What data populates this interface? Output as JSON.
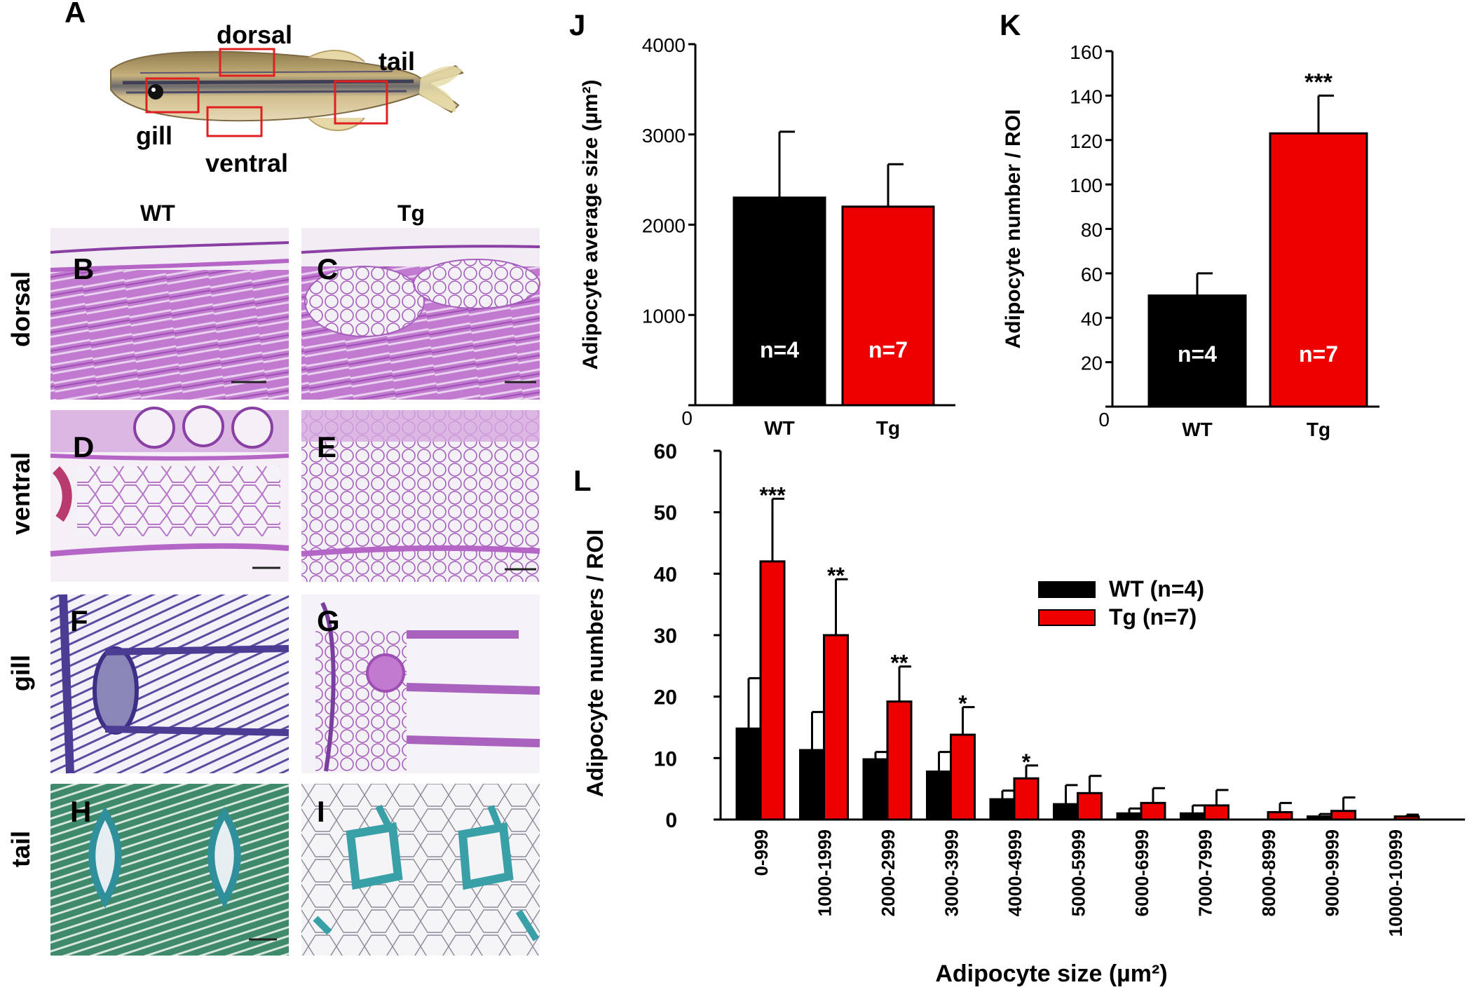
{
  "panels": {
    "A": "A",
    "B": "B",
    "C": "C",
    "D": "D",
    "E": "E",
    "F": "F",
    "G": "G",
    "H": "H",
    "I": "I",
    "J": "J",
    "K": "K",
    "L": "L"
  },
  "fish": {
    "labels": {
      "dorsal": "dorsal",
      "tail": "tail",
      "gill": "gill",
      "ventral": "ventral"
    },
    "box_color": "#e02020",
    "body_color": "#b9a36e"
  },
  "histology": {
    "columns": {
      "wt": "WT",
      "tg": "Tg"
    },
    "rows": {
      "dorsal": "dorsal",
      "ventral": "ventral",
      "gill": "gill",
      "tail": "tail"
    },
    "stain_colors": {
      "pas": "#c37bd0",
      "pas_light": "#e9d2ee",
      "dark_purple": "#7a3f9e",
      "trichrome_green": "#3f8a6b",
      "alcian_blue": "#3aa0a8"
    }
  },
  "colors": {
    "wt": "#000000",
    "tg": "#ee0000"
  },
  "chart_data": [
    {
      "panel": "J",
      "type": "bar",
      "categories": [
        "WT",
        "Tg"
      ],
      "values": [
        2300,
        2200
      ],
      "errors": [
        730,
        470
      ],
      "bar_labels": [
        "n=4",
        "n=7"
      ],
      "significance": [
        "",
        ""
      ],
      "ylabel": "Adipocyte average size (µm²)",
      "ylim": [
        0,
        4000
      ],
      "yticks": [
        0,
        1000,
        2000,
        3000,
        4000
      ]
    },
    {
      "panel": "K",
      "type": "bar",
      "categories": [
        "WT",
        "Tg"
      ],
      "values": [
        50,
        123
      ],
      "errors": [
        10,
        17
      ],
      "bar_labels": [
        "n=4",
        "n=7"
      ],
      "significance": [
        "",
        "***"
      ],
      "ylabel": "Adipocyte number / ROI",
      "ylim": [
        0,
        160
      ],
      "yticks": [
        0,
        20,
        40,
        60,
        80,
        100,
        120,
        140,
        160
      ]
    },
    {
      "panel": "L",
      "type": "bar",
      "categories": [
        "0-999",
        "1000-1999",
        "2000-2999",
        "3000-3999",
        "4000-4999",
        "5000-5999",
        "6000-6999",
        "7000-7999",
        "8000-8999",
        "9000-9999",
        "10000-10999"
      ],
      "series": [
        {
          "name": "WT (n=4)",
          "values": [
            14.8,
            11.3,
            9.8,
            7.8,
            3.3,
            2.5,
            1.0,
            1.0,
            0,
            0.5,
            0
          ],
          "errors": [
            8.2,
            6.2,
            1.2,
            3.2,
            1.4,
            3.1,
            0.8,
            1.3,
            0,
            0.4,
            0
          ]
        },
        {
          "name": "Tg (n=7)",
          "values": [
            42.0,
            30.0,
            19.2,
            13.8,
            6.7,
            4.3,
            2.7,
            2.3,
            1.2,
            1.4,
            0.5
          ],
          "errors": [
            10.2,
            9.1,
            5.7,
            4.5,
            2.1,
            2.8,
            2.4,
            2.5,
            1.5,
            2.2,
            0.3
          ]
        }
      ],
      "significance": [
        "***",
        "**",
        "**",
        "*",
        "*",
        "",
        "",
        "",
        "",
        "",
        ""
      ],
      "xlabel": "Adipocyte size (µm²)",
      "ylabel": "Adipocyte numbers / ROI",
      "ylim": [
        0,
        60
      ],
      "yticks": [
        0,
        10,
        20,
        30,
        40,
        50,
        60
      ],
      "legend": "center-right"
    }
  ]
}
